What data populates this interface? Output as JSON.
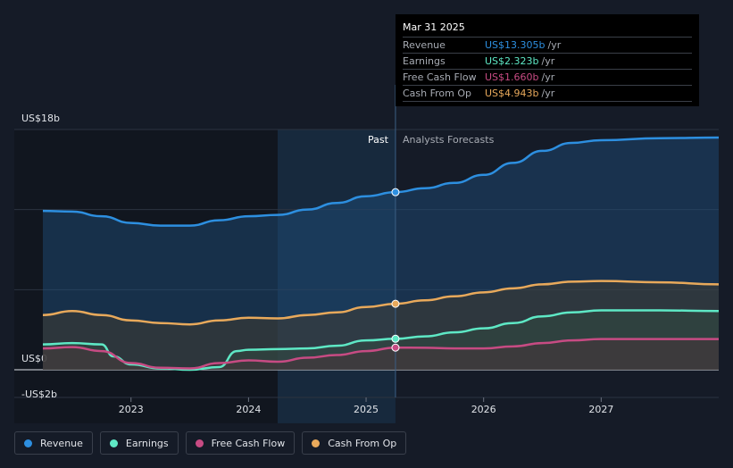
{
  "chart_data": {
    "type": "line",
    "title": "",
    "xlabel": "",
    "ylabel": "",
    "x_ticks": [
      2023,
      2024,
      2025,
      2026,
      2027
    ],
    "x_range": [
      2022.25,
      2028.0
    ],
    "ylim": [
      -2,
      18
    ],
    "y_labels": [
      {
        "value": 18,
        "label": "US$18b"
      },
      {
        "value": 0,
        "label": "US$0"
      },
      {
        "value": -2,
        "label": "-US$2b"
      }
    ],
    "divider_x": 2025.25,
    "past_label": "Past",
    "forecast_label": "Analysts Forecasts",
    "series": [
      {
        "name": "Revenue",
        "color": "#2d8fe0",
        "fill": "#1e4f7f",
        "points": [
          [
            2022.25,
            11.9
          ],
          [
            2022.5,
            11.85
          ],
          [
            2022.75,
            11.5
          ],
          [
            2023.0,
            11.0
          ],
          [
            2023.25,
            10.8
          ],
          [
            2023.5,
            10.8
          ],
          [
            2023.75,
            11.2
          ],
          [
            2024.0,
            11.5
          ],
          [
            2024.25,
            11.6
          ],
          [
            2024.5,
            12.0
          ],
          [
            2024.75,
            12.5
          ],
          [
            2025.0,
            13.0
          ],
          [
            2025.25,
            13.305
          ],
          [
            2025.5,
            13.6
          ],
          [
            2025.75,
            14.0
          ],
          [
            2026.0,
            14.6
          ],
          [
            2026.25,
            15.5
          ],
          [
            2026.5,
            16.4
          ],
          [
            2026.75,
            17.0
          ],
          [
            2027.0,
            17.2
          ],
          [
            2027.5,
            17.35
          ],
          [
            2028.0,
            17.4
          ]
        ]
      },
      {
        "name": "Earnings",
        "color": "#5ee8c5",
        "fill": "#1f5a52",
        "points": [
          [
            2022.25,
            1.9
          ],
          [
            2022.5,
            2.0
          ],
          [
            2022.75,
            1.9
          ],
          [
            2022.85,
            1.0
          ],
          [
            2023.0,
            0.4
          ],
          [
            2023.25,
            0.1
          ],
          [
            2023.5,
            0.0
          ],
          [
            2023.75,
            0.2
          ],
          [
            2023.9,
            1.4
          ],
          [
            2024.0,
            1.5
          ],
          [
            2024.25,
            1.55
          ],
          [
            2024.5,
            1.6
          ],
          [
            2024.75,
            1.8
          ],
          [
            2025.0,
            2.2
          ],
          [
            2025.25,
            2.323
          ],
          [
            2025.5,
            2.5
          ],
          [
            2025.75,
            2.8
          ],
          [
            2026.0,
            3.1
          ],
          [
            2026.25,
            3.5
          ],
          [
            2026.5,
            4.0
          ],
          [
            2026.75,
            4.3
          ],
          [
            2027.0,
            4.45
          ],
          [
            2027.5,
            4.45
          ],
          [
            2028.0,
            4.4
          ]
        ]
      },
      {
        "name": "Free Cash Flow",
        "color": "#c74b83",
        "fill": "#4f2a44",
        "points": [
          [
            2022.25,
            1.6
          ],
          [
            2022.5,
            1.7
          ],
          [
            2022.75,
            1.4
          ],
          [
            2023.0,
            0.5
          ],
          [
            2023.25,
            0.15
          ],
          [
            2023.5,
            0.1
          ],
          [
            2023.75,
            0.5
          ],
          [
            2024.0,
            0.7
          ],
          [
            2024.25,
            0.6
          ],
          [
            2024.5,
            0.9
          ],
          [
            2024.75,
            1.1
          ],
          [
            2025.0,
            1.4
          ],
          [
            2025.25,
            1.66
          ],
          [
            2025.5,
            1.65
          ],
          [
            2025.75,
            1.6
          ],
          [
            2026.0,
            1.6
          ],
          [
            2026.25,
            1.75
          ],
          [
            2026.5,
            2.0
          ],
          [
            2026.75,
            2.2
          ],
          [
            2027.0,
            2.3
          ],
          [
            2027.5,
            2.3
          ],
          [
            2028.0,
            2.3
          ]
        ]
      },
      {
        "name": "Cash From Op",
        "color": "#e8a95b",
        "fill": "#4a3d2d",
        "points": [
          [
            2022.25,
            4.1
          ],
          [
            2022.5,
            4.4
          ],
          [
            2022.75,
            4.1
          ],
          [
            2023.0,
            3.7
          ],
          [
            2023.25,
            3.5
          ],
          [
            2023.5,
            3.4
          ],
          [
            2023.75,
            3.7
          ],
          [
            2024.0,
            3.9
          ],
          [
            2024.25,
            3.85
          ],
          [
            2024.5,
            4.1
          ],
          [
            2024.75,
            4.3
          ],
          [
            2025.0,
            4.7
          ],
          [
            2025.25,
            4.943
          ],
          [
            2025.5,
            5.2
          ],
          [
            2025.75,
            5.5
          ],
          [
            2026.0,
            5.8
          ],
          [
            2026.25,
            6.1
          ],
          [
            2026.5,
            6.4
          ],
          [
            2026.75,
            6.6
          ],
          [
            2027.0,
            6.65
          ],
          [
            2027.5,
            6.55
          ],
          [
            2028.0,
            6.4
          ]
        ]
      }
    ]
  },
  "tooltip": {
    "date": "Mar 31 2025",
    "rows": [
      {
        "label": "Revenue",
        "value": "US$13.305b",
        "unit": "/yr",
        "color": "#2d8fe0"
      },
      {
        "label": "Earnings",
        "value": "US$2.323b",
        "unit": "/yr",
        "color": "#5ee8c5"
      },
      {
        "label": "Free Cash Flow",
        "value": "US$1.660b",
        "unit": "/yr",
        "color": "#c74b83"
      },
      {
        "label": "Cash From Op",
        "value": "US$4.943b",
        "unit": "/yr",
        "color": "#e8a95b"
      }
    ]
  },
  "legend": [
    {
      "label": "Revenue",
      "color": "#2d8fe0"
    },
    {
      "label": "Earnings",
      "color": "#5ee8c5"
    },
    {
      "label": "Free Cash Flow",
      "color": "#c74b83"
    },
    {
      "label": "Cash From Op",
      "color": "#e8a95b"
    }
  ]
}
